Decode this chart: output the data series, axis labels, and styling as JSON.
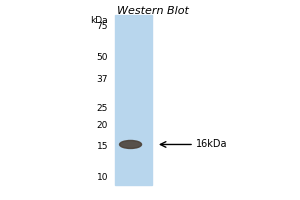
{
  "title": "Western Blot",
  "background_color": "#ffffff",
  "lane_blue": [
    0.72,
    0.84,
    0.93
  ],
  "band_color": "#4a3f35",
  "kda_labels": [
    "kDa",
    "75",
    "50",
    "37",
    "25",
    "20",
    "15",
    "10"
  ],
  "kda_values": [
    80,
    75,
    50,
    37,
    25,
    20,
    15,
    10
  ],
  "band_kda": 15.5,
  "annotation_text": "16kDa",
  "ymin": 9,
  "ymax": 88,
  "fig_width": 3.0,
  "fig_height": 2.0,
  "dpi": 100
}
